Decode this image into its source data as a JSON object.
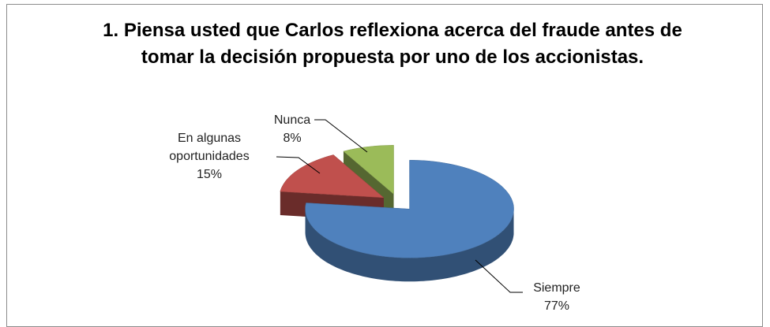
{
  "chart_data": {
    "type": "pie",
    "title": "1. Piensa usted que Carlos reflexiona acerca del fraude antes de tomar la decisión propuesta por uno de los accionistas.",
    "categories": [
      "Siempre",
      "En algunas oportunidades",
      "Nunca"
    ],
    "values": [
      77,
      15,
      8
    ],
    "value_labels": [
      "77%",
      "15%",
      "8%"
    ],
    "colors": [
      "#4f81bd",
      "#c0504d",
      "#9bbb59"
    ]
  }
}
